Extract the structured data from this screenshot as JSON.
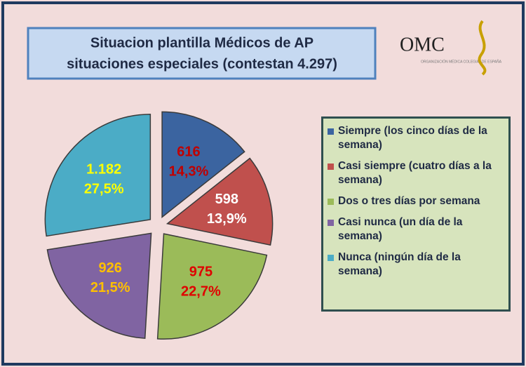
{
  "chart_data": {
    "type": "pie",
    "title_lines": [
      "Situacion plantilla Médicos de AP",
      "situaciones especiales (contestan 4.297)"
    ],
    "logo": "OMC",
    "logo_caption": "ORGANIZACIÓN MÉDICA COLEGIAL DE ESPAÑA",
    "categories": [
      "Siempre (los cinco días de la semana)",
      "Casi siempre (cuatro días a la semana)",
      "Dos o tres días por semana",
      "Casi nunca (un día de la semana)",
      "Nunca (ningún día de la semana)"
    ],
    "values": [
      616,
      598,
      975,
      926,
      1182
    ],
    "value_labels": [
      "616",
      "598",
      "975",
      "926",
      "1.182"
    ],
    "percent_values": [
      14.3,
      13.9,
      22.7,
      21.5,
      27.5
    ],
    "percent_labels": [
      "14,3%",
      "13,9%",
      "22,7%",
      "21,5%",
      "27,5%"
    ],
    "colors": [
      "#3b64a0",
      "#c0504d",
      "#9bbb59",
      "#8064a2",
      "#4bacc6"
    ],
    "label_colors": [
      "#c00000",
      "#ffffff",
      "#e00000",
      "#ffc000",
      "#ffff00"
    ],
    "legend": "right"
  }
}
